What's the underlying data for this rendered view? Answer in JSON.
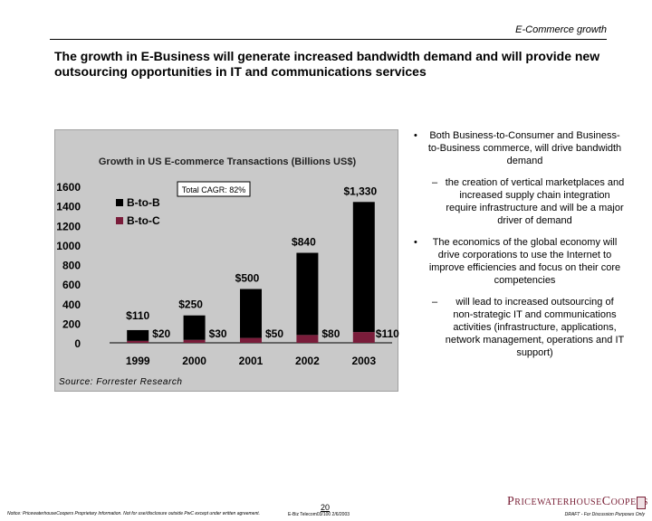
{
  "header": {
    "section": "E-Commerce growth",
    "title": "The growth in E-Business will generate increased bandwidth demand and will provide new outsourcing opportunities in IT and communications services"
  },
  "chart_data": {
    "type": "bar",
    "title": "Growth in US E-commerce Transactions (Billions US$)",
    "categories": [
      "1999",
      "2000",
      "2001",
      "2002",
      "2003"
    ],
    "series": [
      {
        "name": "B-to-B",
        "color": "#000000",
        "values": [
          110,
          250,
          500,
          840,
          1330
        ],
        "labels": [
          "$110",
          "$250",
          "$500",
          "$840",
          "$1,330"
        ]
      },
      {
        "name": "B-to-C",
        "color": "#7a1c3a",
        "values": [
          20,
          30,
          50,
          80,
          110
        ],
        "labels": [
          "$20",
          "$30",
          "$50",
          "$80",
          "$110"
        ]
      }
    ],
    "ylim": [
      0,
      1600
    ],
    "yticks": [
      "0",
      "200",
      "400",
      "600",
      "800",
      "1000",
      "1200",
      "1400",
      "1600"
    ],
    "annotation": "Total CAGR: 82%",
    "source": "Source: Forrester Research"
  },
  "bullets": {
    "b1": "Both Business-to-Consumer and Business-to-Business commerce, will drive bandwidth demand",
    "b1a": "the creation of vertical marketplaces and increased supply chain integration require infrastructure and will be a major driver of demand",
    "b2": "The economics of the global economy will drive corporations to use the Internet to improve efficiencies and focus on their core competencies",
    "b2a": "will lead to increased outsourcing of non-strategic IT and communications activities (infrastructure, applications, network management, operations and IT support)"
  },
  "footer": {
    "left": "Notice: PricewaterhouseCoopers Proprietary Information. Not for use/disclosure outside PwC except under written agreement.",
    "page": "20",
    "mid": "E-Biz Telecom03/100 2/6/2003",
    "right": "DRAFT - For Discussion Purposes Only",
    "logo": "PricewaterhouseCoopers"
  }
}
